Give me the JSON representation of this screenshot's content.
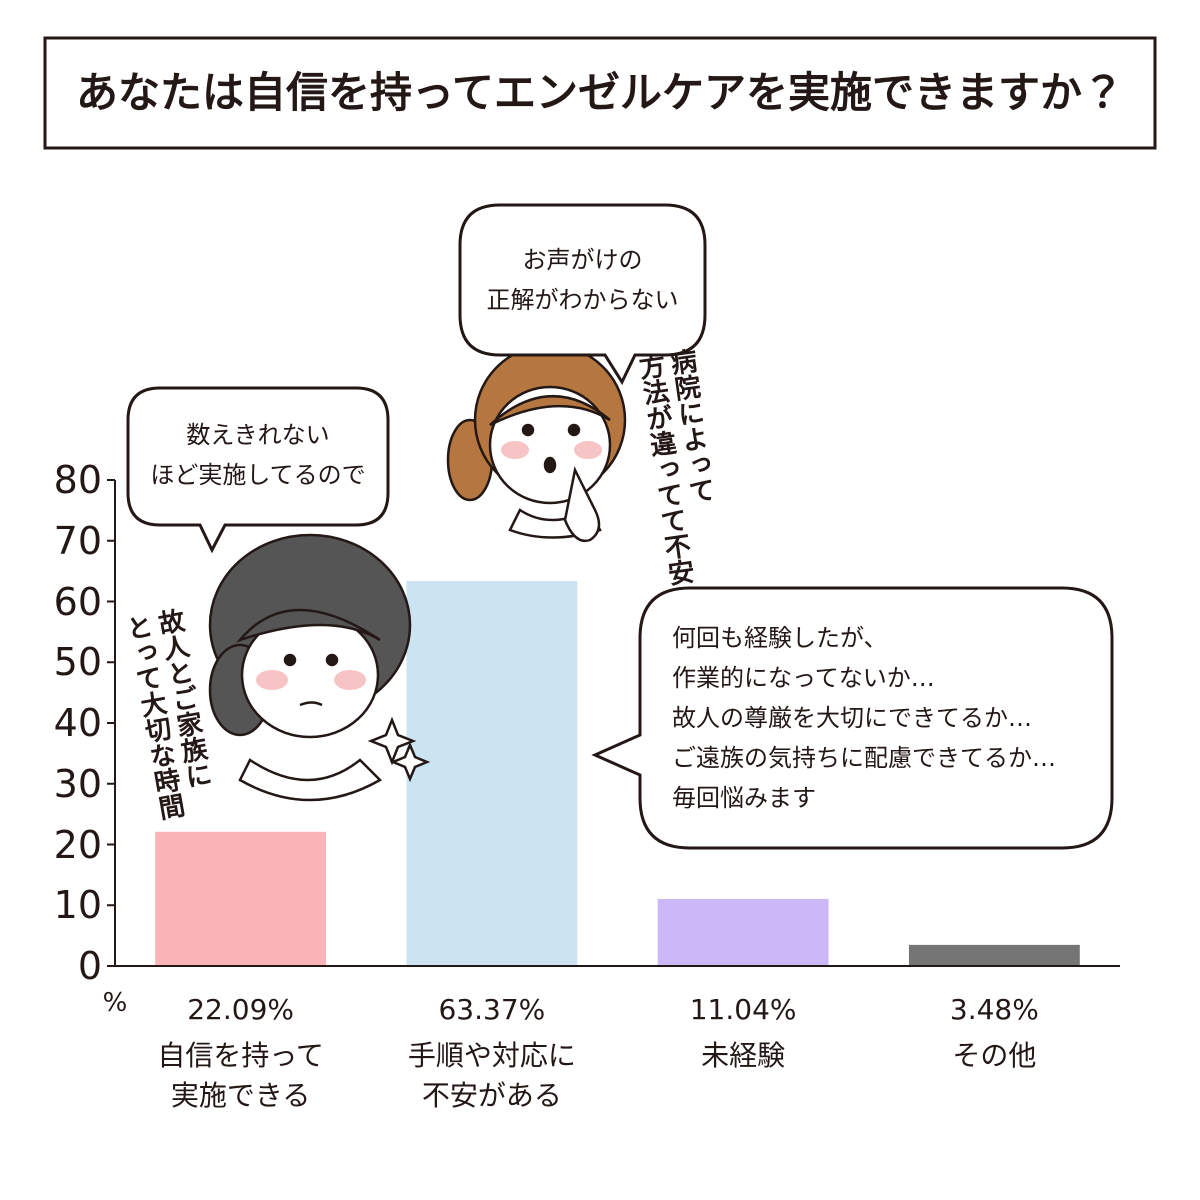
{
  "title": "あなたは自信を持ってエンゼルケアを実施できますか？",
  "chart_data": {
    "type": "bar",
    "categories": [
      "自信を持って\n実施できる",
      "手順や対応に\n不安がある",
      "未経験",
      "その他"
    ],
    "values": [
      22.09,
      63.37,
      11.04,
      3.48
    ],
    "value_labels": [
      "22.09%",
      "63.37%",
      "11.04%",
      "3.48%"
    ],
    "colors": [
      "#f9b4b8",
      "#cce4f1",
      "#cdb8f7",
      "#757575"
    ],
    "ylim": [
      0,
      80
    ],
    "yticks": [
      0,
      10,
      20,
      30,
      40,
      50,
      60,
      70,
      80
    ],
    "y_unit": "%"
  },
  "bubbles": [
    "数えきれない\nほど実施してるので",
    "お声がけの\n正解がわからない",
    "何回も経験したが、\n作業的になってないか…\n故人の尊厳を大切にできてるか…\nご遠族の気持ちに配慮できてるか…\n毎回悩みます"
  ],
  "annotations": [
    "故人とご家族に\nとって大切な時間",
    "病院によって\n方法が違ってて不安"
  ]
}
